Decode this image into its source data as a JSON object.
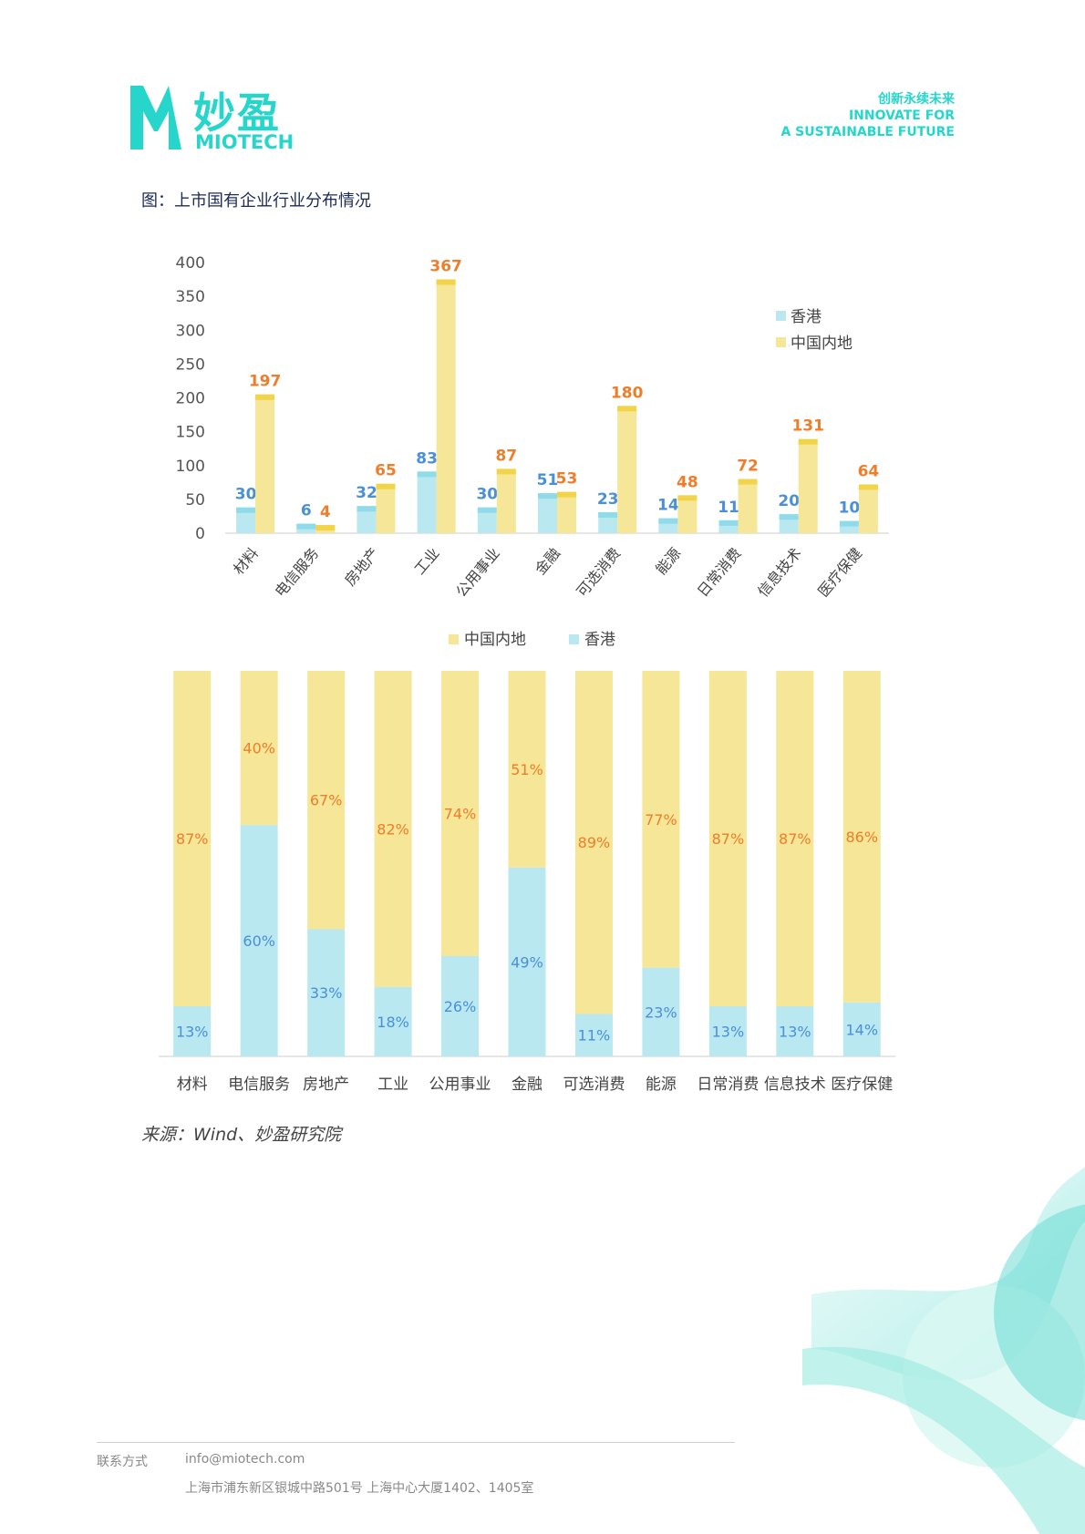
{
  "header": {
    "logo_cn": "妙盈",
    "logo_en": "MIOTECH",
    "slogan_cn": "创新永续未来",
    "slogan_en1": "INNOVATE FOR",
    "slogan_en2": "A SUSTAINABLE FUTURE"
  },
  "figure_title": "图：上市国有企业行业分布情况",
  "source": "来源：Wind、妙盈研究院",
  "footer": {
    "label": "联系方式",
    "email": "info@miotech.com",
    "address": "上海市浦东新区银城中路501号 上海中心大厦1402、1405室"
  },
  "colors": {
    "hk": "#b9e8f0",
    "ml": "#f5e698",
    "hk_label": "#4a90d9",
    "ml_label": "#f07d2a",
    "brand": "#27d6cb"
  },
  "chart_data": [
    {
      "type": "bar",
      "title": "",
      "categories": [
        "材料",
        "电信服务",
        "房地产",
        "工业",
        "公用事业",
        "金融",
        "可选消费",
        "能源",
        "日常消费",
        "信息技术",
        "医疗保健"
      ],
      "series": [
        {
          "name": "香港",
          "values": [
            30,
            6,
            32,
            83,
            30,
            51,
            23,
            14,
            11,
            20,
            10
          ]
        },
        {
          "name": "中国内地",
          "values": [
            197,
            4,
            65,
            367,
            87,
            53,
            180,
            48,
            72,
            131,
            64
          ]
        }
      ],
      "ylim": [
        0,
        400
      ],
      "yticks": [
        0,
        50,
        100,
        150,
        200,
        250,
        300,
        350,
        400
      ],
      "legend": "right"
    },
    {
      "type": "bar",
      "stacked": "percent",
      "categories": [
        "材料",
        "电信服务",
        "房地产",
        "工业",
        "公用事业",
        "金融",
        "可选消费",
        "能源",
        "日常消费",
        "信息技术",
        "医疗保健"
      ],
      "series": [
        {
          "name": "中国内地",
          "values": [
            87,
            40,
            67,
            82,
            74,
            51,
            89,
            77,
            87,
            87,
            86
          ],
          "labels": [
            "87%",
            "40%",
            "67%",
            "82%",
            "74%",
            "51%",
            "89%",
            "77%",
            "87%",
            "87%",
            "86%"
          ]
        },
        {
          "name": "香港",
          "values": [
            13,
            60,
            33,
            18,
            26,
            49,
            11,
            23,
            13,
            13,
            14
          ],
          "labels": [
            "13%",
            "60%",
            "33%",
            "18%",
            "26%",
            "49%",
            "11%",
            "23%",
            "13%",
            "13%",
            "14%"
          ]
        }
      ],
      "legend": "top"
    }
  ]
}
